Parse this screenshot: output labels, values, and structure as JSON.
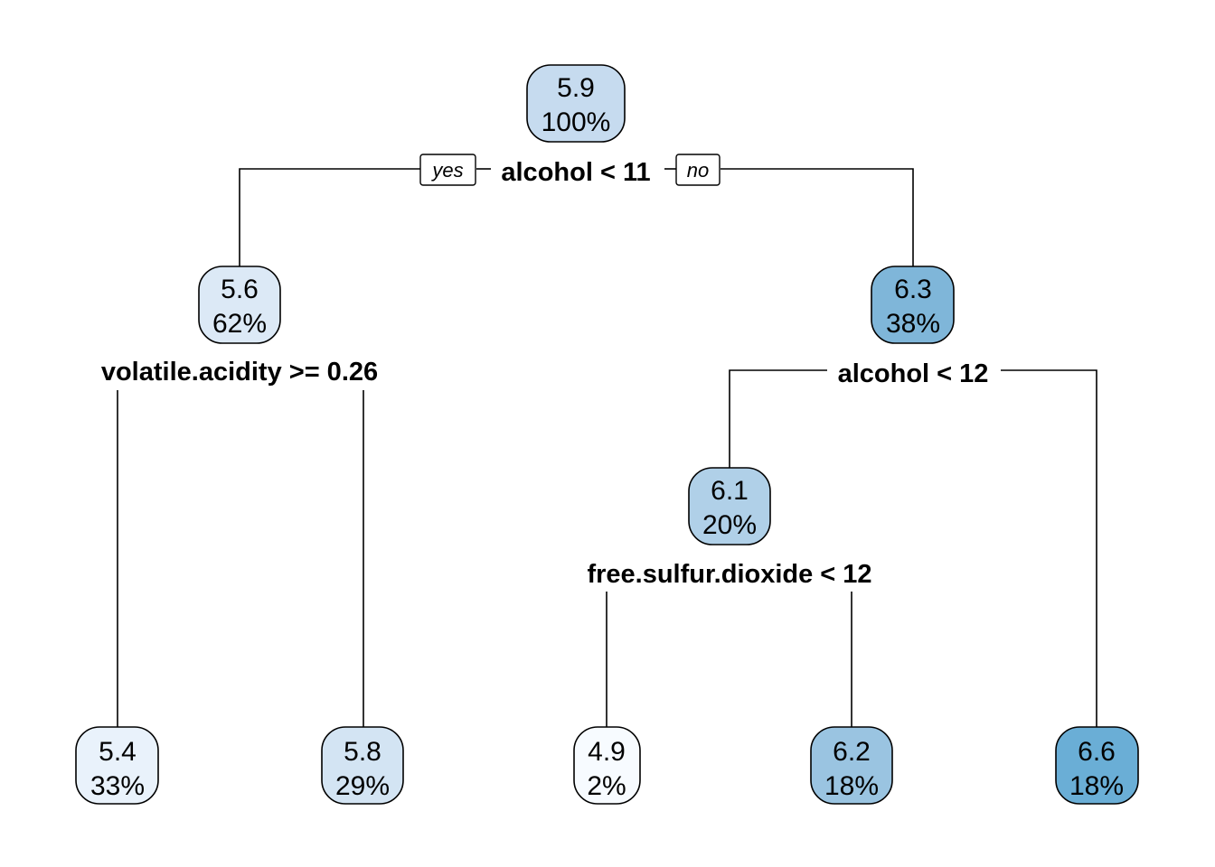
{
  "diagram": {
    "nodes": [
      {
        "id": "n1",
        "value": "5.9",
        "percent": "100%",
        "fill": "#c6dbef"
      },
      {
        "id": "n2",
        "value": "5.6",
        "percent": "62%",
        "fill": "#dce9f6"
      },
      {
        "id": "n3",
        "value": "6.3",
        "percent": "38%",
        "fill": "#7fb6d9"
      },
      {
        "id": "n4",
        "value": "5.4",
        "percent": "33%",
        "fill": "#e9f2fb"
      },
      {
        "id": "n5",
        "value": "5.8",
        "percent": "29%",
        "fill": "#d3e4f3"
      },
      {
        "id": "n6",
        "value": "6.1",
        "percent": "20%",
        "fill": "#b0d0e8"
      },
      {
        "id": "n7",
        "value": "4.9",
        "percent": "2%",
        "fill": "#f7fbff"
      },
      {
        "id": "n8",
        "value": "6.2",
        "percent": "18%",
        "fill": "#9ac4e1"
      },
      {
        "id": "n9",
        "value": "6.6",
        "percent": "18%",
        "fill": "#6aaed6"
      }
    ],
    "splits": [
      {
        "id": "s1",
        "label": "alcohol < 11"
      },
      {
        "id": "s2",
        "label": "volatile.acidity >= 0.26"
      },
      {
        "id": "s3",
        "label": "alcohol < 12"
      },
      {
        "id": "s4",
        "label": "free.sulfur.dioxide < 12"
      }
    ],
    "branch_labels": {
      "yes": "yes",
      "no": "no"
    }
  }
}
